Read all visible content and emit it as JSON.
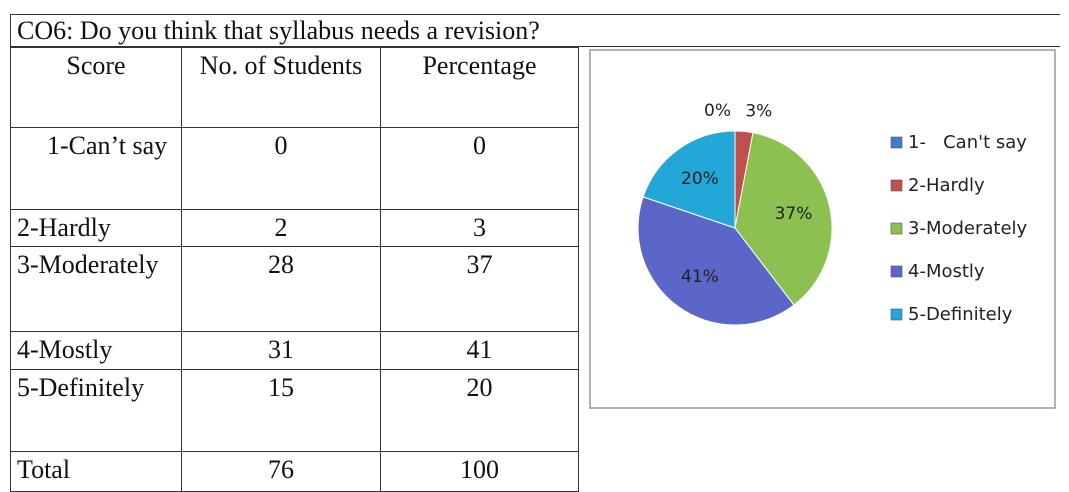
{
  "title": "CO6: Do you think that syllabus needs a revision?",
  "table": {
    "header": [
      "Score",
      "No. of Students",
      "Percentage"
    ],
    "rows": [
      [
        "1-Can’t say",
        0,
        0
      ],
      [
        "2-Hardly",
        2,
        3
      ],
      [
        "3-Moderately",
        28,
        37
      ],
      [
        "4-Mostly",
        31,
        41
      ],
      [
        "5-Definitely",
        15,
        20
      ],
      [
        "Total",
        76,
        100
      ]
    ]
  },
  "chart_data": {
    "type": "pie",
    "categories": [
      "1-   Can't say",
      "2-Hardly",
      "3-Moderately",
      "4-Mostly",
      "5-Definitely"
    ],
    "values": [
      0,
      3,
      37,
      41,
      20
    ],
    "value_labels": [
      "0%",
      "3%",
      "37%",
      "41%",
      "20%"
    ],
    "colors": [
      "#3f7fc9",
      "#c0504d",
      "#8cc152",
      "#5a66c8",
      "#22a7d8"
    ]
  }
}
